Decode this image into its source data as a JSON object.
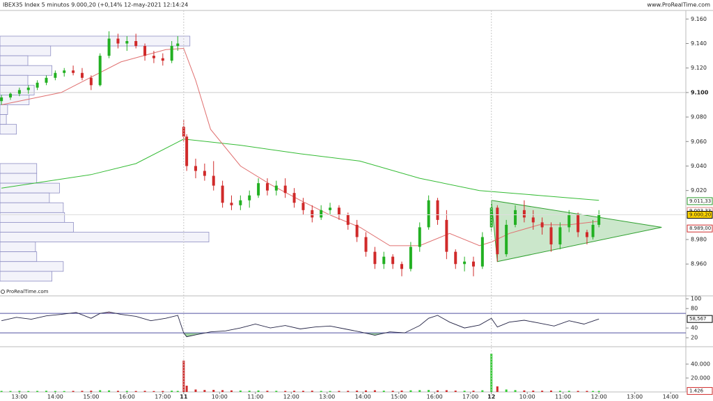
{
  "header": {
    "title": "IBEX35 Index 5 minutos 9.000,20 (+0,14% 12-may-2021 12:14:24",
    "site": "www.ProRealTime.com",
    "watermark": "ProRealTime.com"
  },
  "chart_data": [
    {
      "type": "candlestick",
      "x": [
        0,
        3,
        6,
        9,
        12,
        15,
        18,
        21,
        24,
        27,
        30,
        33,
        36,
        39,
        42,
        45,
        48,
        51,
        54,
        57,
        59,
        61,
        62,
        65,
        68,
        71,
        74,
        77,
        80,
        83,
        86,
        89,
        92,
        95,
        98,
        101,
        104,
        107,
        110,
        113,
        116,
        119,
        122,
        125,
        128,
        131,
        134,
        137,
        140,
        143,
        146,
        149,
        152,
        155,
        158,
        161,
        164,
        166,
        169,
        172,
        175,
        178,
        181,
        184,
        187,
        190,
        193,
        196,
        198,
        200
      ],
      "open": [
        9093,
        9096,
        9099,
        9102,
        9104,
        9108,
        9112,
        9116,
        9118,
        9116,
        9112,
        9106,
        9130,
        9144,
        9140,
        9142,
        9138,
        9130,
        9128,
        9126,
        9138,
        9072,
        9064,
        9040,
        9036,
        9032,
        9024,
        9010,
        9008,
        9012,
        9016,
        9026,
        9020,
        9024,
        9018,
        9010,
        9004,
        8998,
        9004,
        9006,
        9000,
        8992,
        8982,
        8970,
        8960,
        8966,
        8960,
        8956,
        8974,
        8990,
        9012,
        8996,
        8970,
        8960,
        8962,
        8958,
        8990,
        9006,
        8968,
        8992,
        9004,
        8998,
        8994,
        8990,
        8976,
        8990,
        9000,
        8986,
        8982,
        8992
      ],
      "high": [
        9098,
        9100,
        9104,
        9106,
        9110,
        9114,
        9118,
        9120,
        9122,
        9120,
        9114,
        9132,
        9150,
        9148,
        9146,
        9148,
        9140,
        9134,
        9132,
        9142,
        9146,
        9078,
        9066,
        9046,
        9042,
        9044,
        9028,
        9016,
        9016,
        9020,
        9030,
        9030,
        9028,
        9030,
        9022,
        9014,
        9008,
        9008,
        9010,
        9008,
        9002,
        8996,
        8986,
        8974,
        8970,
        8968,
        8962,
        8978,
        8994,
        9016,
        9014,
        9004,
        8972,
        8966,
        8966,
        8986,
        9010,
        9008,
        8996,
        9008,
        9012,
        9004,
        8998,
        8994,
        8994,
        9004,
        9002,
        8988,
        8996,
        9004
      ],
      "low": [
        9090,
        9094,
        9097,
        9099,
        9102,
        9106,
        9110,
        9113,
        9114,
        9110,
        9102,
        9105,
        9128,
        9136,
        9134,
        9136,
        9126,
        9124,
        9122,
        9124,
        9134,
        9060,
        9036,
        9030,
        9028,
        9020,
        9006,
        9004,
        9004,
        9006,
        9014,
        9016,
        9016,
        9014,
        9006,
        9000,
        8994,
        8996,
        9000,
        8996,
        8988,
        8978,
        8966,
        8956,
        8956,
        8956,
        8950,
        8954,
        8970,
        8988,
        8992,
        8964,
        8956,
        8954,
        8950,
        8956,
        8986,
        8962,
        8966,
        8990,
        8994,
        8988,
        8984,
        8970,
        8972,
        8986,
        8982,
        8976,
        8980,
        8990
      ],
      "close": [
        9096,
        9099,
        9102,
        9104,
        9108,
        9112,
        9116,
        9118,
        9116,
        9112,
        9106,
        9130,
        9144,
        9140,
        9142,
        9138,
        9130,
        9128,
        9126,
        9138,
        9140,
        9064,
        9040,
        9036,
        9032,
        9024,
        9010,
        9008,
        9012,
        9016,
        9026,
        9020,
        9024,
        9018,
        9010,
        9004,
        8998,
        9004,
        9006,
        9000,
        8992,
        8982,
        8970,
        8960,
        8966,
        8960,
        8956,
        8974,
        8990,
        9012,
        8996,
        8970,
        8960,
        8962,
        8958,
        8982,
        9006,
        8968,
        8992,
        9004,
        8998,
        8994,
        8990,
        8976,
        8990,
        9000,
        8986,
        8982,
        8992,
        9000.2
      ],
      "up_color": "#22b022",
      "down_color": "#d02a2a",
      "xlim": [
        -0.5,
        229.1
      ],
      "ylim": [
        8934,
        9167
      ],
      "yticks": [
        {
          "value": 9160,
          "label": "9.160"
        },
        {
          "value": 9140,
          "label": "9.140"
        },
        {
          "value": 9120,
          "label": "9.120"
        },
        {
          "value": 9100,
          "label": "9.100",
          "bold": true
        },
        {
          "value": 9080,
          "label": "9.080"
        },
        {
          "value": 9060,
          "label": "9.060"
        },
        {
          "value": 9040,
          "label": "9.040"
        },
        {
          "value": 9020,
          "label": "9.020"
        },
        {
          "value": 8980,
          "label": "8.980"
        },
        {
          "value": 8960,
          "label": "8.960"
        }
      ],
      "overlays": [
        {
          "color": "#33bb33",
          "x": [
            0,
            30,
            45,
            61,
            80,
            100,
            120,
            140,
            160,
            180,
            200
          ],
          "values": [
            9022,
            9033,
            9042,
            9062,
            9057,
            9050,
            9044,
            9030,
            9020,
            9016,
            9012
          ]
        },
        {
          "color": "#e07070",
          "x": [
            0,
            20,
            40,
            55,
            61,
            65,
            70,
            80,
            90,
            100,
            110,
            120,
            130,
            140,
            150,
            160,
            164,
            170,
            180,
            190,
            200
          ],
          "values": [
            9090,
            9100,
            9125,
            9135,
            9136,
            9110,
            9070,
            9040,
            9025,
            9012,
            9000,
            8990,
            8975,
            8975,
            8985,
            8975,
            8978,
            8985,
            8992,
            8992,
            8995
          ]
        }
      ],
      "triangle": {
        "x": [
          164,
          221,
          166
        ],
        "y": [
          9012,
          8990,
          8962
        ],
        "color": "#2ea02e"
      },
      "volume_profile": {
        "levels": [
          9142,
          9134,
          9126,
          9118,
          9110,
          9102,
          9094,
          9086,
          9078,
          9070,
          9038,
          9030,
          9022,
          9014,
          9006,
          8998,
          8990,
          8982,
          8974,
          8966,
          8958,
          8950
        ],
        "values": [
          300,
          80,
          44,
          82,
          44,
          54,
          46,
          12,
          10,
          26,
          58,
          58,
          94,
          78,
          100,
          102,
          116,
          330,
          56,
          58,
          100,
          82
        ]
      },
      "markers": [
        {
          "value": 9011.33,
          "label": "9.011,33",
          "color": "#2a9a2a",
          "bg": "#ffffff"
        },
        {
          "value": 9003.33,
          "label": "9.003,33",
          "color": "#e08080",
          "bg": "#ffffff"
        },
        {
          "value": 9000.2,
          "label": "9.000,20",
          "color": "#000000",
          "bg": "#ffd400"
        },
        {
          "value": 8989,
          "label": "8.989,00",
          "color": "#d02a2a",
          "bg": "#ffffff"
        }
      ]
    },
    {
      "type": "line",
      "x": [
        0,
        5,
        10,
        15,
        20,
        25,
        30,
        33,
        36,
        40,
        45,
        50,
        55,
        59,
        61,
        62,
        65,
        70,
        75,
        80,
        85,
        90,
        95,
        100,
        105,
        110,
        115,
        120,
        125,
        130,
        135,
        140,
        143,
        146,
        150,
        155,
        160,
        164,
        166,
        170,
        175,
        180,
        185,
        190,
        195,
        200
      ],
      "values": [
        55,
        62,
        58,
        65,
        68,
        72,
        60,
        70,
        73,
        68,
        64,
        55,
        60,
        66,
        30,
        22,
        26,
        32,
        34,
        40,
        48,
        40,
        45,
        38,
        42,
        44,
        38,
        32,
        25,
        32,
        30,
        45,
        60,
        66,
        52,
        40,
        46,
        60,
        42,
        52,
        56,
        50,
        44,
        55,
        48,
        58.567
      ],
      "color": "#222244",
      "xlim": [
        -0.5,
        229.1
      ],
      "ylim": [
        3,
        106
      ],
      "yticks": [
        100,
        80,
        40,
        20
      ],
      "levels": [
        70,
        30
      ],
      "level_color": "#5050a0",
      "markers": [
        {
          "value": 58.567,
          "label": "58,567",
          "color": "#000000",
          "bg": "#ffffff"
        }
      ]
    },
    {
      "type": "bar",
      "x": [
        0,
        3,
        6,
        9,
        12,
        15,
        18,
        21,
        24,
        27,
        30,
        33,
        36,
        39,
        42,
        45,
        48,
        51,
        54,
        57,
        59,
        61,
        62,
        65,
        68,
        71,
        74,
        77,
        80,
        83,
        86,
        89,
        92,
        95,
        98,
        101,
        104,
        107,
        110,
        113,
        116,
        119,
        122,
        125,
        128,
        131,
        134,
        137,
        140,
        143,
        146,
        149,
        152,
        155,
        158,
        161,
        164,
        166,
        169,
        172,
        175,
        178,
        181,
        184,
        187,
        190,
        193,
        196,
        198,
        200
      ],
      "values": [
        1500,
        1400,
        1600,
        1300,
        1500,
        1700,
        1400,
        1300,
        1500,
        1600,
        1800,
        2500,
        2200,
        1600,
        1500,
        1400,
        1600,
        1300,
        1400,
        1800,
        1500,
        45000,
        9000,
        3500,
        2800,
        3000,
        2600,
        2200,
        2000,
        1800,
        2100,
        1700,
        1600,
        1500,
        1700,
        1600,
        1800,
        1500,
        1400,
        1500,
        1600,
        1900,
        2200,
        2400,
        1800,
        1700,
        2000,
        2300,
        2600,
        2800,
        2200,
        2500,
        1900,
        1700,
        1800,
        2400,
        55000,
        8000,
        3500,
        2600,
        2200,
        1900,
        1800,
        2000,
        1700,
        1600,
        1500,
        1500,
        1400,
        1426
      ],
      "up_color": "#33cc33",
      "down_color": "#d02a2a",
      "xlim": [
        -0.5,
        229.1
      ],
      "ylim": [
        0,
        63000
      ],
      "yticks": [
        {
          "value": 40000,
          "label": "40.000"
        },
        {
          "value": 20000,
          "label": "20.000"
        }
      ],
      "xticks": [
        {
          "value": 6,
          "label": "13:00"
        },
        {
          "value": 18,
          "label": "14:00"
        },
        {
          "value": 30,
          "label": "15:00"
        },
        {
          "value": 42,
          "label": "16:00"
        },
        {
          "value": 54,
          "label": "17:00"
        },
        {
          "value": 61,
          "label": "11",
          "bold": true
        },
        {
          "value": 73,
          "label": "10:00"
        },
        {
          "value": 85,
          "label": "11:00"
        },
        {
          "value": 97,
          "label": "12:00"
        },
        {
          "value": 109,
          "label": "13:00"
        },
        {
          "value": 121,
          "label": "14:00"
        },
        {
          "value": 133,
          "label": "15:00"
        },
        {
          "value": 145,
          "label": "16:00"
        },
        {
          "value": 157,
          "label": "17:00"
        },
        {
          "value": 164,
          "label": "12",
          "bold": true
        },
        {
          "value": 176,
          "label": "10:00"
        },
        {
          "value": 188,
          "label": "11:00"
        },
        {
          "value": 200,
          "label": "12:00"
        },
        {
          "value": 212,
          "label": "13:00"
        },
        {
          "value": 224,
          "label": "14:00"
        }
      ],
      "markers": [
        {
          "value": 1426,
          "label": "1.426",
          "color": "#d02a2a",
          "bg": "#ffffff"
        }
      ]
    }
  ]
}
